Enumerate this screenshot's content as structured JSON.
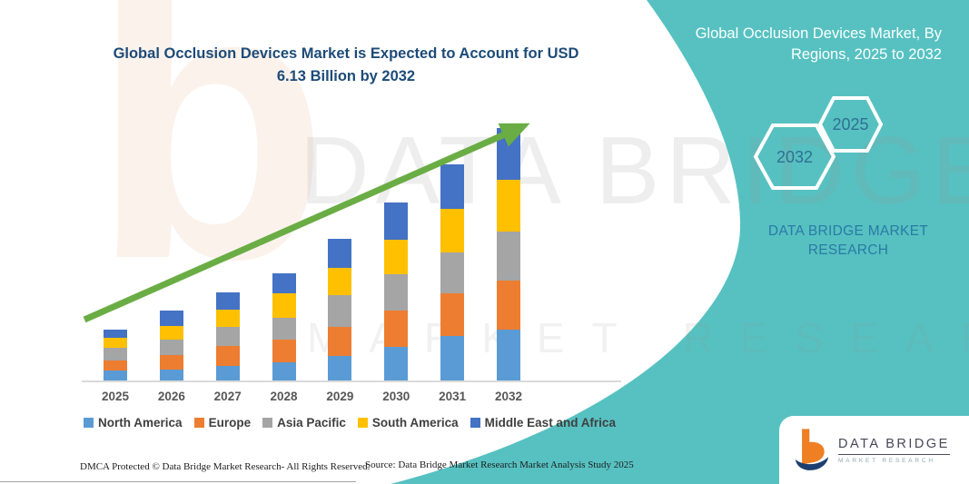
{
  "main_title": {
    "line1": "Global Occlusion Devices Market is Expected to Account for USD",
    "line2": "6.13 Billion by 2032",
    "color": "#1d4b78"
  },
  "side_panel": {
    "title_line1": "Global Occlusion Devices Market, By",
    "title_line2": "Regions, 2025 to 2032",
    "hexagons": [
      "2032",
      "2025"
    ],
    "brand_line1": "DATA BRIDGE MARKET",
    "brand_line2": "RESEARCH",
    "accent_color": "#57c1c1"
  },
  "watermark": {
    "letter": "b",
    "line1": "DATA BRIDGE",
    "line2": "MARKET RESEARCH"
  },
  "logo": {
    "name": "DATA BRIDGE",
    "subtitle": "MARKET RESEARCH",
    "orange": "#ee7f22",
    "navy": "#1d3f70"
  },
  "footer": {
    "dmca": "DMCA Protected © Data Bridge Market Research-  All Rights Reserved.",
    "source": "Source: Data Bridge Market Research  Market Analysis Study 2025"
  },
  "chart_data": {
    "type": "bar",
    "stacked": true,
    "title": "Global Occlusion Devices Market is Expected to Account for USD 6.13 Billion by 2032",
    "unit": "USD Billion",
    "categories": [
      "2025",
      "2026",
      "2027",
      "2028",
      "2029",
      "2030",
      "2031",
      "2032"
    ],
    "series": [
      {
        "name": "North America",
        "color": "#5b9bd5",
        "values": [
          0.25,
          0.27,
          0.35,
          0.45,
          0.59,
          0.82,
          1.09,
          1.23
        ]
      },
      {
        "name": "Europe",
        "color": "#ed7d31",
        "values": [
          0.25,
          0.36,
          0.48,
          0.56,
          0.71,
          0.89,
          1.03,
          1.2
        ]
      },
      {
        "name": "Asia Pacific",
        "color": "#a5a5a5",
        "values": [
          0.32,
          0.37,
          0.47,
          0.52,
          0.78,
          0.89,
          1.0,
          1.2
        ]
      },
      {
        "name": "South America",
        "color": "#ffc000",
        "values": [
          0.24,
          0.33,
          0.41,
          0.59,
          0.67,
          0.85,
          1.07,
          1.25
        ]
      },
      {
        "name": "Middle East and Africa",
        "color": "#4472c4",
        "values": [
          0.21,
          0.37,
          0.43,
          0.48,
          0.71,
          0.91,
          1.09,
          1.25
        ]
      }
    ],
    "totals": [
      1.27,
      1.7,
      2.14,
      2.6,
      3.46,
      4.36,
      5.28,
      6.13
    ],
    "xlabel": "",
    "ylabel": "",
    "ylim": [
      0,
      6.5
    ],
    "grid": false,
    "legend_position": "bottom",
    "annotation": "upward trend arrow",
    "arrow_color": "#6aad45"
  }
}
